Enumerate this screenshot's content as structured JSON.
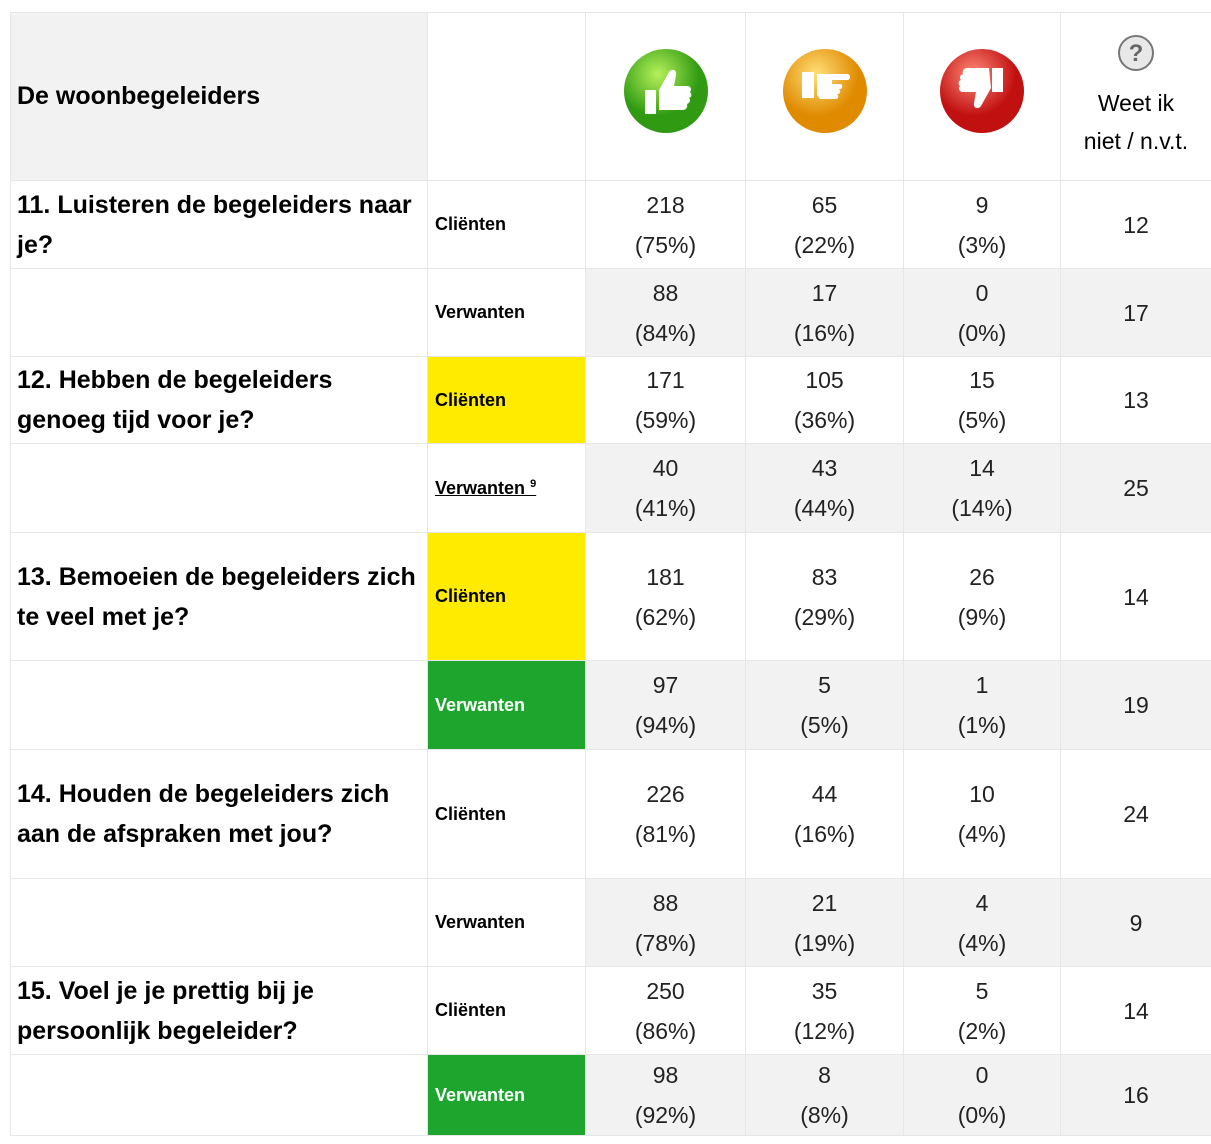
{
  "header": {
    "title": "De woonbegeleiders",
    "dontknow": [
      "Weet ik",
      "niet  / n.v.t."
    ]
  },
  "highlight_colors": {
    "yellow": "#ffeb00",
    "green": "#1ea52e"
  },
  "rows": [
    {
      "question": "11. Luisteren de begeleiders naar je?",
      "group": "Cliënten",
      "cells": [
        {
          "count": 218,
          "pct": "(75%)"
        },
        {
          "count": 65,
          "pct": "(22%)"
        },
        {
          "count": 9,
          "pct": "(3%)"
        }
      ],
      "dontknow": 12
    },
    {
      "group": "Verwanten",
      "cells": [
        {
          "count": 88,
          "pct": "(84%)"
        },
        {
          "count": 17,
          "pct": "(16%)"
        },
        {
          "count": 0,
          "pct": "(0%)"
        }
      ],
      "dontknow": 17
    },
    {
      "question": "12. Hebben de begeleiders genoeg tijd voor je?",
      "group": "Cliënten",
      "highlight": "yellow",
      "cells": [
        {
          "count": 171,
          "pct": "(59%)"
        },
        {
          "count": 105,
          "pct": "(36%)"
        },
        {
          "count": 15,
          "pct": "(5%)"
        }
      ],
      "dontknow": 13
    },
    {
      "group": "Verwanten",
      "note": "9",
      "cells": [
        {
          "count": 40,
          "pct": "(41%)"
        },
        {
          "count": 43,
          "pct": "(44%)"
        },
        {
          "count": 14,
          "pct": "(14%)"
        }
      ],
      "dontknow": 25
    },
    {
      "question": "13. Bemoeien de begeleiders zich te veel met je?",
      "group": "Cliënten",
      "highlight": "yellow",
      "cells": [
        {
          "count": 181,
          "pct": "(62%)"
        },
        {
          "count": 83,
          "pct": "(29%)"
        },
        {
          "count": 26,
          "pct": "(9%)"
        }
      ],
      "dontknow": 14
    },
    {
      "group": "Verwanten",
      "highlight": "green",
      "cells": [
        {
          "count": 97,
          "pct": "(94%)"
        },
        {
          "count": 5,
          "pct": "(5%)"
        },
        {
          "count": 1,
          "pct": "(1%)"
        }
      ],
      "dontknow": 19
    },
    {
      "question": "14. Houden de begeleiders zich aan de afspraken met jou?",
      "group": "Cliënten",
      "cells": [
        {
          "count": 226,
          "pct": "(81%)"
        },
        {
          "count": 44,
          "pct": "(16%)"
        },
        {
          "count": 10,
          "pct": "(4%)"
        }
      ],
      "dontknow": 24
    },
    {
      "group": "Verwanten",
      "cells": [
        {
          "count": 88,
          "pct": "(78%)"
        },
        {
          "count": 21,
          "pct": "(19%)"
        },
        {
          "count": 4,
          "pct": "(4%)"
        }
      ],
      "dontknow": 9
    },
    {
      "question": "15. Voel je je prettig bij je persoonlijk begeleider?",
      "group": "Cliënten",
      "cells": [
        {
          "count": 250,
          "pct": "(86%)"
        },
        {
          "count": 35,
          "pct": "(12%)"
        },
        {
          "count": 5,
          "pct": "(2%)"
        }
      ],
      "dontknow": 14
    },
    {
      "group": "Verwanten",
      "highlight": "green",
      "cells": [
        {
          "count": 98,
          "pct": "(92%)"
        },
        {
          "count": 8,
          "pct": "(8%)"
        },
        {
          "count": 0,
          "pct": "(0%)"
        }
      ],
      "dontknow": 16
    }
  ]
}
